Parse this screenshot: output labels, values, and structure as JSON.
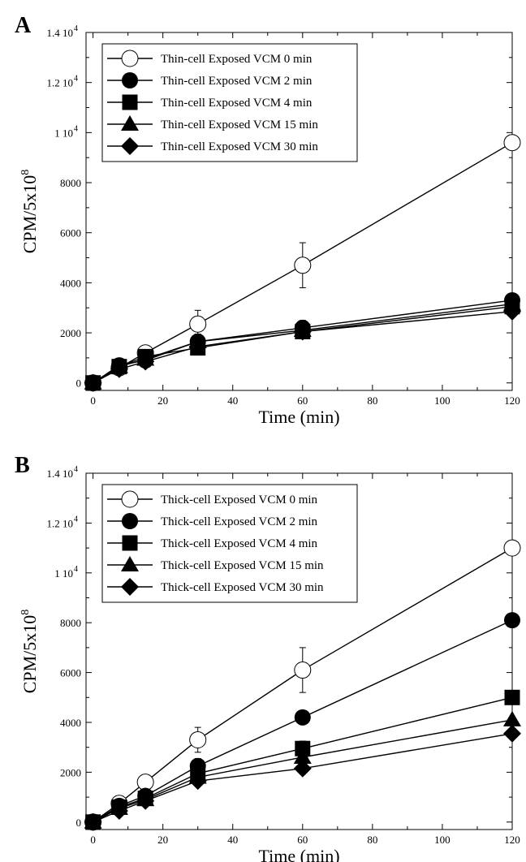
{
  "chart_data": [
    {
      "panel_label": "A",
      "type": "line",
      "xlabel": "Time (min)",
      "ylabel_main": "CPM/5x10",
      "ylabel_sup": "8",
      "xlim": [
        -2,
        120
      ],
      "ylim": [
        -300,
        14000
      ],
      "x_ticks": [
        0,
        20,
        40,
        60,
        80,
        100,
        120
      ],
      "y_ticks": [
        {
          "value": 0,
          "base": "0",
          "sup": ""
        },
        {
          "value": 2000,
          "base": "2000",
          "sup": ""
        },
        {
          "value": 4000,
          "base": "4000",
          "sup": ""
        },
        {
          "value": 6000,
          "base": "6000",
          "sup": ""
        },
        {
          "value": 8000,
          "base": "8000",
          "sup": ""
        },
        {
          "value": 10000,
          "base": "1 10",
          "sup": "4"
        },
        {
          "value": 12000,
          "base": "1.2 10",
          "sup": "4"
        },
        {
          "value": 14000,
          "base": "1.4 10",
          "sup": "4"
        }
      ],
      "legend_position": "top-left",
      "series": [
        {
          "name": "Thin-cell Exposed VCM 0 min",
          "marker": "circle-open",
          "x": [
            0,
            7.5,
            15,
            30,
            60,
            120
          ],
          "y": [
            0,
            600,
            1200,
            2350,
            4700,
            9600
          ],
          "err": [
            0,
            0,
            0,
            550,
            900,
            0
          ]
        },
        {
          "name": "Thin-cell Exposed VCM 2 min",
          "marker": "circle",
          "x": [
            0,
            7.5,
            15,
            30,
            60,
            120
          ],
          "y": [
            0,
            700,
            900,
            1650,
            2200,
            3300
          ],
          "err": [
            0,
            0,
            0,
            300,
            300,
            0
          ]
        },
        {
          "name": "Thin-cell Exposed VCM 4 min",
          "marker": "square",
          "x": [
            0,
            7.5,
            15,
            30,
            60,
            120
          ],
          "y": [
            0,
            650,
            1050,
            1400,
            2050,
            3050
          ],
          "err": [
            0,
            0,
            0,
            0,
            0,
            0
          ]
        },
        {
          "name": "Thin-cell Exposed VCM 15 min",
          "marker": "triangle",
          "x": [
            0,
            7.5,
            15,
            30,
            60,
            120
          ],
          "y": [
            0,
            650,
            950,
            1650,
            2100,
            3150
          ],
          "err": [
            0,
            0,
            0,
            0,
            0,
            0
          ]
        },
        {
          "name": "Thin-cell Exposed VCM 30 min",
          "marker": "diamond",
          "x": [
            0,
            7.5,
            15,
            30,
            60,
            120
          ],
          "y": [
            0,
            550,
            850,
            1450,
            2050,
            2850
          ],
          "err": [
            0,
            0,
            0,
            0,
            0,
            0
          ]
        }
      ]
    },
    {
      "panel_label": "B",
      "type": "line",
      "xlabel": "Time (min)",
      "ylabel_main": "CPM/5x10",
      "ylabel_sup": "8",
      "xlim": [
        -2,
        120
      ],
      "ylim": [
        -300,
        14000
      ],
      "x_ticks": [
        0,
        20,
        40,
        60,
        80,
        100,
        120
      ],
      "y_ticks": [
        {
          "value": 0,
          "base": "0",
          "sup": ""
        },
        {
          "value": 2000,
          "base": "2000",
          "sup": ""
        },
        {
          "value": 4000,
          "base": "4000",
          "sup": ""
        },
        {
          "value": 6000,
          "base": "6000",
          "sup": ""
        },
        {
          "value": 8000,
          "base": "8000",
          "sup": ""
        },
        {
          "value": 10000,
          "base": "1 10",
          "sup": "4"
        },
        {
          "value": 12000,
          "base": "1.2 10",
          "sup": "4"
        },
        {
          "value": 14000,
          "base": "1.4 10",
          "sup": "4"
        }
      ],
      "legend_position": "top-left",
      "series": [
        {
          "name": "Thick-cell Exposed VCM 0 min",
          "marker": "circle-open",
          "x": [
            0,
            7.5,
            15,
            30,
            60,
            120
          ],
          "y": [
            0,
            750,
            1600,
            3300,
            6100,
            11000
          ],
          "err": [
            0,
            0,
            300,
            500,
            900,
            0
          ]
        },
        {
          "name": "Thick-cell Exposed VCM 2 min",
          "marker": "circle",
          "x": [
            0,
            7.5,
            15,
            30,
            60,
            120
          ],
          "y": [
            0,
            650,
            1050,
            2250,
            4200,
            8100
          ],
          "err": [
            0,
            0,
            0,
            300,
            0,
            0
          ]
        },
        {
          "name": "Thick-cell Exposed VCM 4 min",
          "marker": "square",
          "x": [
            0,
            7.5,
            15,
            30,
            60,
            120
          ],
          "y": [
            0,
            600,
            950,
            1950,
            2950,
            5000
          ],
          "err": [
            0,
            0,
            0,
            0,
            300,
            0
          ]
        },
        {
          "name": "Thick-cell Exposed VCM 15 min",
          "marker": "triangle",
          "x": [
            0,
            7.5,
            15,
            30,
            60,
            120
          ],
          "y": [
            0,
            550,
            900,
            1800,
            2600,
            4100
          ],
          "err": [
            0,
            0,
            0,
            0,
            0,
            0
          ]
        },
        {
          "name": "Thick-cell Exposed VCM 30 min",
          "marker": "diamond",
          "x": [
            0,
            7.5,
            15,
            30,
            60,
            120
          ],
          "y": [
            0,
            450,
            850,
            1650,
            2150,
            3550
          ],
          "err": [
            0,
            0,
            0,
            0,
            0,
            0
          ]
        }
      ]
    }
  ]
}
